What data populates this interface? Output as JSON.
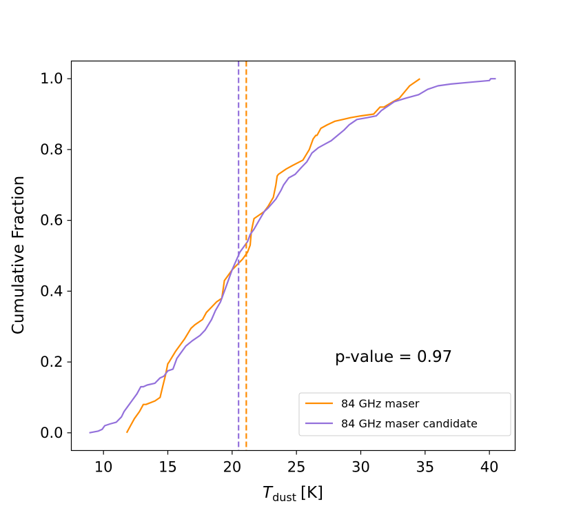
{
  "chart_data": {
    "type": "line",
    "title": "",
    "xlabel": "T",
    "xlabel_sub": "dust",
    "xlabel_unit": "[K]",
    "ylabel": "Cumulative Fraction",
    "xlim": [
      7.5,
      42.0
    ],
    "ylim": [
      -0.05,
      1.05
    ],
    "xticks": [
      10,
      15,
      20,
      25,
      30,
      35,
      40
    ],
    "yticks": [
      0.0,
      0.2,
      0.4,
      0.6,
      0.8,
      1.0
    ],
    "xtick_labels": [
      "10",
      "15",
      "20",
      "25",
      "30",
      "35",
      "40"
    ],
    "ytick_labels": [
      "0.0",
      "0.2",
      "0.4",
      "0.6",
      "0.8",
      "1.0"
    ],
    "grid": false,
    "annotation": "p-value = 0.97",
    "legend_location": "lower-right",
    "series": [
      {
        "name": "84 GHz maser",
        "color": "#ff8c00",
        "median": 21.1,
        "x": [
          11.8,
          12.1,
          12.4,
          12.8,
          13.1,
          13.3,
          14.0,
          14.4,
          14.6,
          14.8,
          15.0,
          15.1,
          15.6,
          16.0,
          16.3,
          16.8,
          17.1,
          17.7,
          18.0,
          18.4,
          18.8,
          19.2,
          19.4,
          19.6,
          20.0,
          20.4,
          20.8,
          21.2,
          21.4,
          21.5,
          21.7,
          22.3,
          22.5,
          22.8,
          23.2,
          23.4,
          23.5,
          23.6,
          24.2,
          24.7,
          25.5,
          26.0,
          26.3,
          26.5,
          26.6,
          26.9,
          27.4,
          28.0,
          28.6,
          29.2,
          30.0,
          31.0,
          31.5,
          31.8,
          32.5,
          33.0,
          33.8,
          34.6
        ],
        "y": [
          0.0,
          0.02,
          0.04,
          0.06,
          0.08,
          0.08,
          0.09,
          0.1,
          0.13,
          0.16,
          0.195,
          0.2,
          0.23,
          0.25,
          0.265,
          0.295,
          0.305,
          0.32,
          0.34,
          0.355,
          0.37,
          0.38,
          0.43,
          0.44,
          0.46,
          0.475,
          0.49,
          0.51,
          0.53,
          0.57,
          0.605,
          0.62,
          0.625,
          0.64,
          0.665,
          0.7,
          0.725,
          0.73,
          0.745,
          0.755,
          0.77,
          0.8,
          0.83,
          0.84,
          0.84,
          0.86,
          0.87,
          0.88,
          0.885,
          0.89,
          0.895,
          0.9,
          0.92,
          0.92,
          0.935,
          0.945,
          0.98,
          1.0
        ]
      },
      {
        "name": "84 GHz maser candidate",
        "color": "#9370db",
        "median": 20.5,
        "x": [
          8.9,
          9.6,
          9.9,
          10.1,
          10.5,
          11.0,
          11.4,
          11.6,
          11.9,
          12.2,
          12.6,
          12.9,
          13.1,
          13.4,
          14.0,
          14.4,
          14.7,
          15.0,
          15.4,
          15.7,
          15.9,
          16.4,
          16.9,
          17.5,
          17.9,
          18.4,
          18.7,
          19.1,
          19.5,
          20.0,
          20.6,
          21.2,
          21.4,
          21.7,
          22.1,
          22.5,
          22.8,
          23.4,
          23.8,
          24.0,
          24.4,
          24.9,
          25.4,
          25.8,
          26.2,
          26.7,
          27.2,
          27.7,
          28.2,
          28.7,
          29.1,
          29.7,
          30.5,
          31.2,
          31.6,
          32.2,
          32.6,
          33.5,
          34.5,
          35.2,
          36.0,
          37.0,
          38.5,
          40.0,
          40.1,
          40.5
        ],
        "y": [
          0.0,
          0.005,
          0.01,
          0.02,
          0.025,
          0.03,
          0.045,
          0.06,
          0.075,
          0.09,
          0.11,
          0.13,
          0.13,
          0.135,
          0.14,
          0.155,
          0.16,
          0.175,
          0.18,
          0.21,
          0.22,
          0.245,
          0.26,
          0.275,
          0.29,
          0.32,
          0.345,
          0.37,
          0.41,
          0.46,
          0.51,
          0.54,
          0.56,
          0.575,
          0.6,
          0.625,
          0.635,
          0.66,
          0.685,
          0.7,
          0.72,
          0.73,
          0.75,
          0.765,
          0.79,
          0.805,
          0.815,
          0.825,
          0.84,
          0.855,
          0.87,
          0.885,
          0.89,
          0.895,
          0.91,
          0.925,
          0.935,
          0.945,
          0.955,
          0.97,
          0.98,
          0.985,
          0.99,
          0.995,
          1.0,
          1.0
        ]
      }
    ]
  }
}
